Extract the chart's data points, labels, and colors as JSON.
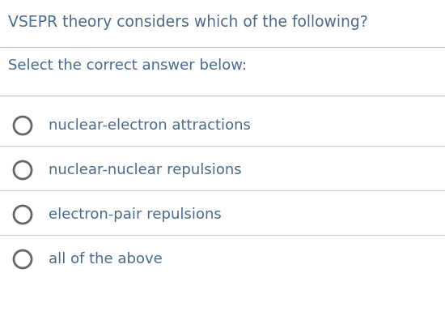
{
  "title": "VSEPR theory considers which of the following?",
  "subtitle": "Select the correct answer below:",
  "options": [
    "nuclear-electron attractions",
    "nuclear-nuclear repulsions",
    "electron-pair repulsions",
    "all of the above"
  ],
  "background_color": "#ffffff",
  "title_color": "#4a6b8a",
  "subtitle_color": "#4a6b8a",
  "option_text_color": "#4a6b8a",
  "circle_edge_color": "#666666",
  "line_color": "#cccccc",
  "title_fontsize": 13.5,
  "subtitle_fontsize": 13,
  "option_fontsize": 13,
  "figwidth": 5.5,
  "figheight": 4.0,
  "dpi": 100
}
